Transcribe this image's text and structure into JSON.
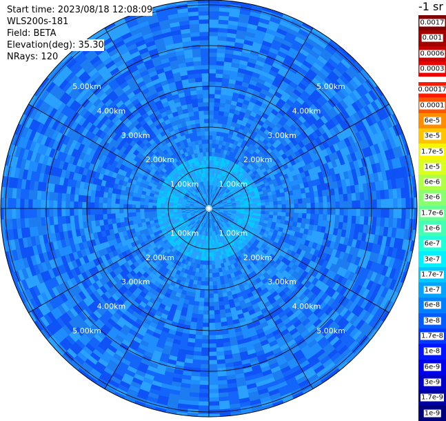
{
  "header": {
    "start_time": "Start time: 2023/08/18 12:08:09",
    "instrument": "WLS200s-181",
    "field": "Field: BETA",
    "elevation": "Elevation(deg): 35.30",
    "nrays": "NRays: 120"
  },
  "units": "-1 sr",
  "range_labels": [
    "1.00km",
    "2.00km",
    "3.00km",
    "4.00km",
    "5.00km"
  ],
  "colorbar": {
    "upper": [
      {
        "label": "0.0017",
        "color": "#7f0000"
      },
      {
        "label": "0.001",
        "color": "#a30000"
      },
      {
        "label": "0.0006",
        "color": "#c80000"
      },
      {
        "label": "0.0003",
        "color": "#ed0000"
      }
    ],
    "lower": [
      {
        "label": "0.00017",
        "color": "#ff1a00"
      },
      {
        "label": "0.0001",
        "color": "#ff5400"
      },
      {
        "label": "6e-5",
        "color": "#ff8d00"
      },
      {
        "label": "3e-5",
        "color": "#ffc300"
      },
      {
        "label": "1.7e-5",
        "color": "#f7f500"
      },
      {
        "label": "1e-5",
        "color": "#d8ff1f"
      },
      {
        "label": "6e-6",
        "color": "#b0ff47"
      },
      {
        "label": "3e-6",
        "color": "#89ff6e"
      },
      {
        "label": "1.7e-6",
        "color": "#66ff91"
      },
      {
        "label": "1e-6",
        "color": "#43ffb4"
      },
      {
        "label": "6e-7",
        "color": "#20ffd7"
      },
      {
        "label": "3e-7",
        "color": "#00f0ff"
      },
      {
        "label": "1.7e-7",
        "color": "#00c8ff"
      },
      {
        "label": "1e-7",
        "color": "#00a4ff"
      },
      {
        "label": "6e-8",
        "color": "#0080ff"
      },
      {
        "label": "3e-8",
        "color": "#005cff"
      },
      {
        "label": "1.7e-8",
        "color": "#0038ff"
      },
      {
        "label": "1e-8",
        "color": "#0014ff"
      },
      {
        "label": "6e-9",
        "color": "#0000ea"
      },
      {
        "label": "3e-9",
        "color": "#0000c6"
      },
      {
        "label": "1.7e-9",
        "color": "#0000a1"
      },
      {
        "label": "1e-9",
        "color": "#00007d"
      }
    ]
  },
  "colors": {
    "background_field": "#1c7cf0",
    "grid": "#000000"
  }
}
